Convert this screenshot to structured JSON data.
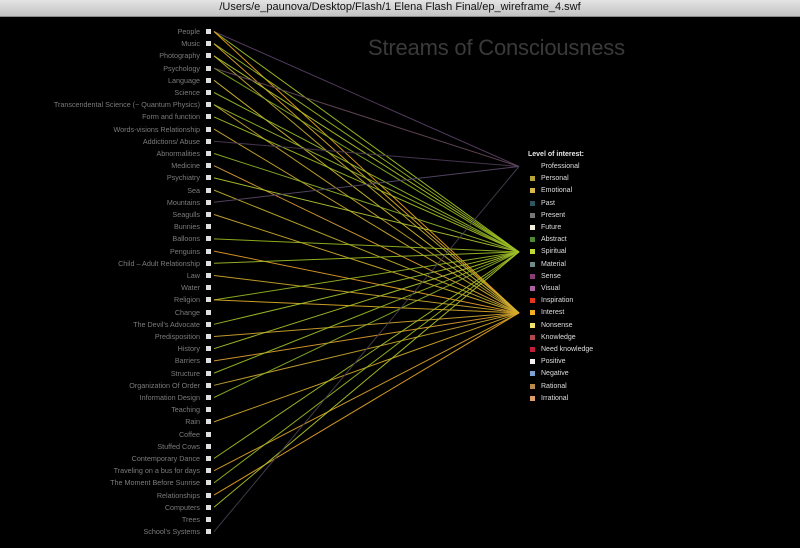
{
  "window": {
    "title": "/Users/e_paunova/Desktop/Flash/1 Elena Flash Final/ep_wireframe_4.swf"
  },
  "heading": "Streams of Consciousness",
  "topics": [
    "People",
    "Music",
    "Photography",
    "Psychology",
    "Language",
    "Science",
    "Transcendental Science (~ Quantum Physics)",
    "Form and function",
    "Words-visions Relationship",
    "Addictions/ Abuse",
    "Abnormalities",
    "Medicine",
    "Psychiatry",
    "Sea",
    "Mountains",
    "Seagulls",
    "Bunnies",
    "Balloons",
    "Penguins",
    "Child – Adult Relationship",
    "Law",
    "Water",
    "Religion",
    "Change",
    "The Devil's Advocate",
    "Predisposition",
    "History",
    "Barriers",
    "Structure",
    "Organization Of Order",
    "Information Design",
    "Teaching",
    "Rain",
    "Coffee",
    "Stuffed Cows",
    "Contemporary Dance",
    "Traveling on a bus for days",
    "The Moment Before Sunrise",
    "Relationships",
    "Computers",
    "Trees",
    "School's Systems"
  ],
  "legend": {
    "title": "Level of interest:",
    "items": [
      {
        "label": "Professional",
        "color": "#000000"
      },
      {
        "label": "Personal",
        "color": "#b5a23a"
      },
      {
        "label": "Emotional",
        "color": "#d8b84a"
      },
      {
        "label": "Past",
        "color": "#2f5560"
      },
      {
        "label": "Present",
        "color": "#777777"
      },
      {
        "label": "Future",
        "color": "#f4f0dc"
      },
      {
        "label": "Abstract",
        "color": "#4f8a32"
      },
      {
        "label": "Spiritual",
        "color": "#c2d832"
      },
      {
        "label": "Material",
        "color": "#708a8a"
      },
      {
        "label": "Sense",
        "color": "#8a3c74"
      },
      {
        "label": "Visual",
        "color": "#b060a4"
      },
      {
        "label": "Inspiration",
        "color": "#e8361e"
      },
      {
        "label": "Interest",
        "color": "#f4b020"
      },
      {
        "label": "Nonsense",
        "color": "#f2e26a"
      },
      {
        "label": "Knowledge",
        "color": "#b04a4a"
      },
      {
        "label": "Need knowledge",
        "color": "#c01e3c"
      },
      {
        "label": "Positive",
        "color": "#f6f0f6"
      },
      {
        "label": "Negative",
        "color": "#7aa2d2"
      },
      {
        "label": "Rational",
        "color": "#b88a4c"
      },
      {
        "label": "Irrational",
        "color": "#dea06a"
      }
    ]
  },
  "streams": [
    {
      "from": 0,
      "to": "Professional",
      "color": "#5a4268"
    },
    {
      "from": 0,
      "to": "Spiritual",
      "color": "#a7c824"
    },
    {
      "from": 0,
      "to": "Interest",
      "color": "#f0a818"
    },
    {
      "from": 1,
      "to": "Spiritual",
      "color": "#9ec020"
    },
    {
      "from": 1,
      "to": "Interest",
      "color": "#e8b02a"
    },
    {
      "from": 2,
      "to": "Spiritual",
      "color": "#b6cc2a"
    },
    {
      "from": 2,
      "to": "Interest",
      "color": "#c8b032"
    },
    {
      "from": 3,
      "to": "Spiritual",
      "color": "#8ab420"
    },
    {
      "from": 3,
      "to": "Professional",
      "color": "#6a4a5c"
    },
    {
      "from": 4,
      "to": "Interest",
      "color": "#d8c030"
    },
    {
      "from": 5,
      "to": "Spiritual",
      "color": "#9cc028"
    },
    {
      "from": 6,
      "to": "Interest",
      "color": "#c9a830"
    },
    {
      "from": 6,
      "to": "Spiritual",
      "color": "#9aba2c"
    },
    {
      "from": 7,
      "to": "Spiritual",
      "color": "#a8c424"
    },
    {
      "from": 8,
      "to": "Interest",
      "color": "#d4b02c"
    },
    {
      "from": 9,
      "to": "Professional",
      "color": "#4d3a55"
    },
    {
      "from": 10,
      "to": "Spiritual",
      "color": "#8fb52a"
    },
    {
      "from": 11,
      "to": "Interest",
      "color": "#e0a43a"
    },
    {
      "from": 12,
      "to": "Spiritual",
      "color": "#b8cc30"
    },
    {
      "from": 13,
      "to": "Interest",
      "color": "#c4b428"
    },
    {
      "from": 14,
      "to": "Professional",
      "color": "#5a4a6a"
    },
    {
      "from": 15,
      "to": "Interest",
      "color": "#d2b22c"
    },
    {
      "from": 17,
      "to": "Spiritual",
      "color": "#9cbc22"
    },
    {
      "from": 18,
      "to": "Interest",
      "color": "#e8a02a"
    },
    {
      "from": 19,
      "to": "Spiritual",
      "color": "#a0c028"
    },
    {
      "from": 20,
      "to": "Interest",
      "color": "#d0aa30"
    },
    {
      "from": 22,
      "to": "Spiritual",
      "color": "#98ba24"
    },
    {
      "from": 22,
      "to": "Interest",
      "color": "#e0b028"
    },
    {
      "from": 24,
      "to": "Spiritual",
      "color": "#a4c42a"
    },
    {
      "from": 25,
      "to": "Interest",
      "color": "#d4a830"
    },
    {
      "from": 26,
      "to": "Spiritual",
      "color": "#b0c82c"
    },
    {
      "from": 27,
      "to": "Interest",
      "color": "#e4a430"
    },
    {
      "from": 28,
      "to": "Spiritual",
      "color": "#9cc024"
    },
    {
      "from": 29,
      "to": "Interest",
      "color": "#cca832"
    },
    {
      "from": 30,
      "to": "Spiritual",
      "color": "#8cb22a"
    },
    {
      "from": 32,
      "to": "Interest",
      "color": "#d8ae2a"
    },
    {
      "from": 35,
      "to": "Spiritual",
      "color": "#a6c426"
    },
    {
      "from": 36,
      "to": "Interest",
      "color": "#e0a82c"
    },
    {
      "from": 37,
      "to": "Spiritual",
      "color": "#9ebe20"
    },
    {
      "from": 38,
      "to": "Interest",
      "color": "#e8a628"
    },
    {
      "from": 39,
      "to": "Spiritual",
      "color": "#b2ca2a"
    },
    {
      "from": 41,
      "to": "Professional",
      "color": "#4a4050"
    }
  ]
}
